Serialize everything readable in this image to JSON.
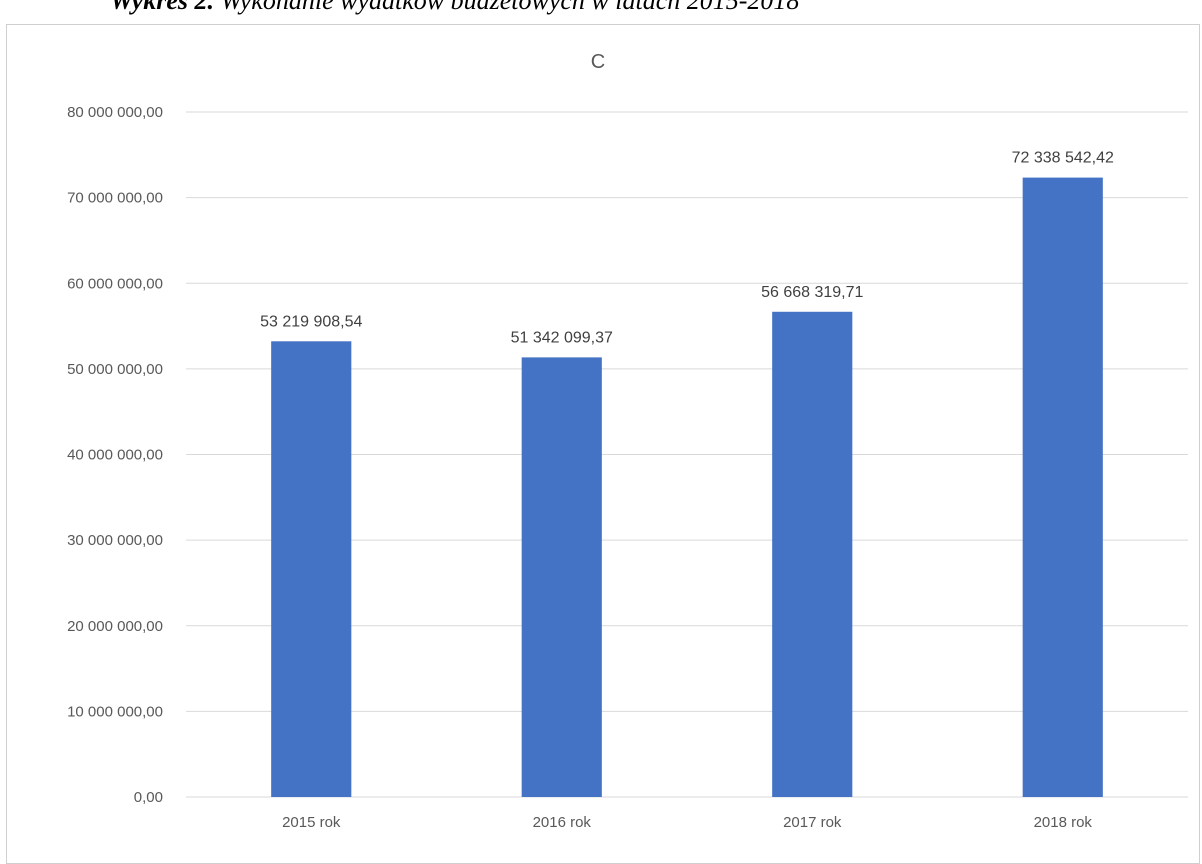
{
  "caption": {
    "bold": "Wykres 2.",
    "rest": "Wykonanie wydatków budżetowych w latach 2015-2018"
  },
  "chart_data": {
    "type": "bar",
    "title": "C",
    "categories": [
      "2015 rok",
      "2016 rok",
      "2017 rok",
      "2018 rok"
    ],
    "values": [
      53219908.54,
      51342099.37,
      56668319.71,
      72338542.42
    ],
    "data_labels": [
      "53 219 908,54",
      "51 342 099,37",
      "56 668 319,71",
      "72 338 542,42"
    ],
    "y_ticks": [
      0,
      10000000,
      20000000,
      30000000,
      40000000,
      50000000,
      60000000,
      70000000,
      80000000
    ],
    "y_tick_labels": [
      "0,00",
      "10 000 000,00",
      "20 000 000,00",
      "30 000 000,00",
      "40 000 000,00",
      "50 000 000,00",
      "60 000 000,00",
      "70 000 000,00",
      "80 000 000,00"
    ],
    "ylim": [
      0,
      80000000
    ],
    "grid": true,
    "legend": "none",
    "bar_color": "#4472C4",
    "grid_color": "#D9D9D9"
  }
}
